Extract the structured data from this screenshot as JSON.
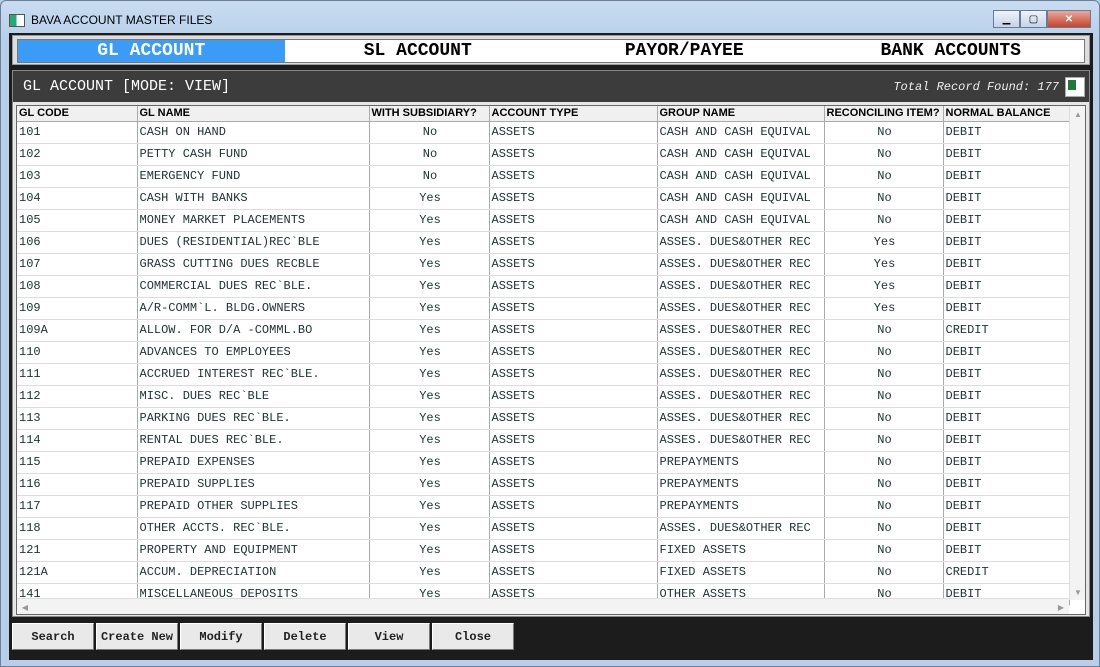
{
  "window": {
    "title": "BAVA ACCOUNT MASTER FILES",
    "minimize": "▁",
    "maximize": "▢",
    "close": "✕"
  },
  "tabs": [
    {
      "label": "GL ACCOUNT",
      "active": true
    },
    {
      "label": "SL ACCOUNT"
    },
    {
      "label": "PAYOR/PAYEE"
    },
    {
      "label": "BANK ACCOUNTS"
    }
  ],
  "panel": {
    "title": "GL ACCOUNT [MODE: VIEW]",
    "record_count": "Total Record Found: 177",
    "export_icon": "excel-export-icon"
  },
  "columns": [
    "GL CODE",
    "GL NAME",
    "WITH SUBSIDIARY?",
    "ACCOUNT TYPE",
    "GROUP NAME",
    "RECONCILING ITEM?",
    "NORMAL BALANCE"
  ],
  "rows": [
    [
      "101",
      "CASH ON HAND",
      "No",
      "ASSETS",
      "CASH AND CASH EQUIVAL",
      "No",
      "DEBIT"
    ],
    [
      "102",
      "PETTY CASH FUND",
      "No",
      "ASSETS",
      "CASH AND CASH EQUIVAL",
      "No",
      "DEBIT"
    ],
    [
      "103",
      "EMERGENCY FUND",
      "No",
      "ASSETS",
      "CASH AND CASH EQUIVAL",
      "No",
      "DEBIT"
    ],
    [
      "104",
      "CASH WITH BANKS",
      "Yes",
      "ASSETS",
      "CASH AND CASH EQUIVAL",
      "No",
      "DEBIT"
    ],
    [
      "105",
      "MONEY MARKET PLACEMENTS",
      "Yes",
      "ASSETS",
      "CASH AND CASH EQUIVAL",
      "No",
      "DEBIT"
    ],
    [
      "106",
      "DUES (RESIDENTIAL)REC`BLE",
      "Yes",
      "ASSETS",
      "ASSES. DUES&OTHER REC",
      "Yes",
      "DEBIT"
    ],
    [
      "107",
      "GRASS CUTTING DUES RECBLE",
      "Yes",
      "ASSETS",
      "ASSES. DUES&OTHER REC",
      "Yes",
      "DEBIT"
    ],
    [
      "108",
      "COMMERCIAL DUES REC`BLE.",
      "Yes",
      "ASSETS",
      "ASSES. DUES&OTHER REC",
      "Yes",
      "DEBIT"
    ],
    [
      "109",
      "A/R-COMM`L. BLDG.OWNERS",
      "Yes",
      "ASSETS",
      "ASSES. DUES&OTHER REC",
      "Yes",
      "DEBIT"
    ],
    [
      "109A",
      "ALLOW. FOR D/A -COMML.BO",
      "Yes",
      "ASSETS",
      "ASSES. DUES&OTHER REC",
      "No",
      "CREDIT"
    ],
    [
      "110",
      "ADVANCES TO EMPLOYEES",
      "Yes",
      "ASSETS",
      "ASSES. DUES&OTHER REC",
      "No",
      "DEBIT"
    ],
    [
      "111",
      "ACCRUED INTEREST REC`BLE.",
      "Yes",
      "ASSETS",
      "ASSES. DUES&OTHER REC",
      "No",
      "DEBIT"
    ],
    [
      "112",
      "MISC. DUES REC`BLE",
      "Yes",
      "ASSETS",
      "ASSES. DUES&OTHER REC",
      "No",
      "DEBIT"
    ],
    [
      "113",
      "PARKING DUES REC`BLE.",
      "Yes",
      "ASSETS",
      "ASSES. DUES&OTHER REC",
      "No",
      "DEBIT"
    ],
    [
      "114",
      "RENTAL DUES REC`BLE.",
      "Yes",
      "ASSETS",
      "ASSES. DUES&OTHER REC",
      "No",
      "DEBIT"
    ],
    [
      "115",
      "PREPAID EXPENSES",
      "Yes",
      "ASSETS",
      "PREPAYMENTS",
      "No",
      "DEBIT"
    ],
    [
      "116",
      "PREPAID SUPPLIES",
      "Yes",
      "ASSETS",
      "PREPAYMENTS",
      "No",
      "DEBIT"
    ],
    [
      "117",
      "PREPAID OTHER SUPPLIES",
      "Yes",
      "ASSETS",
      "PREPAYMENTS",
      "No",
      "DEBIT"
    ],
    [
      "118",
      "OTHER ACCTS. REC`BLE.",
      "Yes",
      "ASSETS",
      "ASSES. DUES&OTHER REC",
      "No",
      "DEBIT"
    ],
    [
      "121",
      "PROPERTY AND EQUIPMENT",
      "Yes",
      "ASSETS",
      "FIXED ASSETS",
      "No",
      "DEBIT"
    ],
    [
      "121A",
      "ACCUM. DEPRECIATION",
      "Yes",
      "ASSETS",
      "FIXED ASSETS",
      "No",
      "CREDIT"
    ],
    [
      "141",
      "MISCELLANEOUS DEPOSITS",
      "Yes",
      "ASSETS",
      "OTHER ASSETS",
      "No",
      "DEBIT"
    ]
  ],
  "buttons": [
    "Search",
    "Create New",
    "Modify",
    "Delete",
    "View",
    "Close"
  ]
}
